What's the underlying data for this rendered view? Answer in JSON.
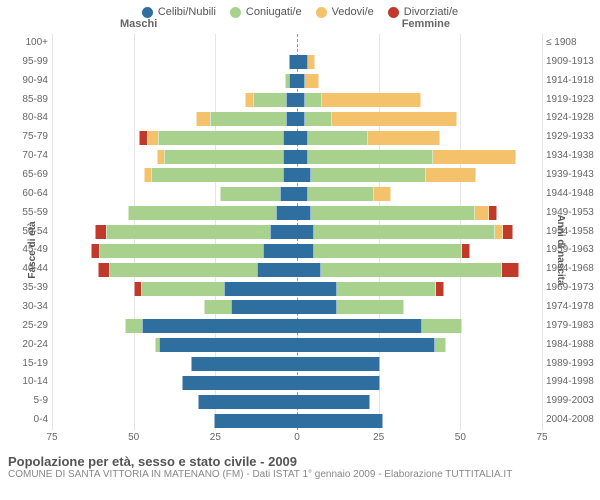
{
  "legend": [
    {
      "label": "Celibi/Nubili",
      "color": "#2f6f9f"
    },
    {
      "label": "Coniugati/e",
      "color": "#a9d18e"
    },
    {
      "label": "Vedovi/e",
      "color": "#f4c26b"
    },
    {
      "label": "Divorziati/e",
      "color": "#c0392b"
    }
  ],
  "headers": {
    "male": "Maschi",
    "female": "Femmine"
  },
  "ylabels": {
    "left": "Fasce di età",
    "right": "Anni di nascita"
  },
  "xaxis": {
    "max": 75,
    "ticks": [
      75,
      50,
      25,
      0,
      25,
      50,
      75
    ]
  },
  "title": "Popolazione per età, sesso e stato civile - 2009",
  "subtitle": "COMUNE DI SANTA VITTORIA IN MATENANO (FM) - Dati ISTAT 1° gennaio 2009 - Elaborazione TUTTITALIA.IT",
  "rows": [
    {
      "age": "100+",
      "birth": "≤ 1908",
      "m": [
        0,
        0,
        0,
        0
      ],
      "f": [
        0,
        0,
        0,
        0
      ]
    },
    {
      "age": "95-99",
      "birth": "1909-1913",
      "m": [
        2,
        0,
        0,
        0
      ],
      "f": [
        3,
        0,
        2,
        0
      ]
    },
    {
      "age": "90-94",
      "birth": "1914-1918",
      "m": [
        2,
        1,
        0,
        0
      ],
      "f": [
        2,
        0,
        4,
        0
      ]
    },
    {
      "age": "85-89",
      "birth": "1919-1923",
      "m": [
        3,
        10,
        2,
        0
      ],
      "f": [
        2,
        5,
        30,
        0
      ]
    },
    {
      "age": "80-84",
      "birth": "1924-1928",
      "m": [
        3,
        23,
        4,
        0
      ],
      "f": [
        2,
        8,
        38,
        0
      ]
    },
    {
      "age": "75-79",
      "birth": "1929-1933",
      "m": [
        4,
        38,
        3,
        2
      ],
      "f": [
        3,
        18,
        22,
        0
      ]
    },
    {
      "age": "70-74",
      "birth": "1934-1938",
      "m": [
        4,
        36,
        2,
        0
      ],
      "f": [
        3,
        38,
        25,
        0
      ]
    },
    {
      "age": "65-69",
      "birth": "1939-1943",
      "m": [
        4,
        40,
        2,
        0
      ],
      "f": [
        4,
        35,
        15,
        0
      ]
    },
    {
      "age": "60-64",
      "birth": "1944-1948",
      "m": [
        5,
        18,
        0,
        0
      ],
      "f": [
        3,
        20,
        5,
        0
      ]
    },
    {
      "age": "55-59",
      "birth": "1949-1953",
      "m": [
        6,
        45,
        0,
        0
      ],
      "f": [
        4,
        50,
        4,
        2
      ]
    },
    {
      "age": "50-54",
      "birth": "1954-1958",
      "m": [
        8,
        50,
        0,
        3
      ],
      "f": [
        5,
        55,
        2,
        3
      ]
    },
    {
      "age": "45-49",
      "birth": "1959-1963",
      "m": [
        10,
        50,
        0,
        2
      ],
      "f": [
        5,
        45,
        0,
        2
      ]
    },
    {
      "age": "40-44",
      "birth": "1964-1968",
      "m": [
        12,
        45,
        0,
        3
      ],
      "f": [
        7,
        55,
        0,
        5
      ]
    },
    {
      "age": "35-39",
      "birth": "1969-1973",
      "m": [
        22,
        25,
        0,
        2
      ],
      "f": [
        12,
        30,
        0,
        2
      ]
    },
    {
      "age": "30-34",
      "birth": "1974-1978",
      "m": [
        20,
        8,
        0,
        0
      ],
      "f": [
        12,
        20,
        0,
        0
      ]
    },
    {
      "age": "25-29",
      "birth": "1979-1983",
      "m": [
        47,
        5,
        0,
        0
      ],
      "f": [
        38,
        12,
        0,
        0
      ]
    },
    {
      "age": "20-24",
      "birth": "1984-1988",
      "m": [
        42,
        1,
        0,
        0
      ],
      "f": [
        42,
        3,
        0,
        0
      ]
    },
    {
      "age": "15-19",
      "birth": "1989-1993",
      "m": [
        32,
        0,
        0,
        0
      ],
      "f": [
        25,
        0,
        0,
        0
      ]
    },
    {
      "age": "10-14",
      "birth": "1994-1998",
      "m": [
        35,
        0,
        0,
        0
      ],
      "f": [
        25,
        0,
        0,
        0
      ]
    },
    {
      "age": "5-9",
      "birth": "1999-2003",
      "m": [
        30,
        0,
        0,
        0
      ],
      "f": [
        22,
        0,
        0,
        0
      ]
    },
    {
      "age": "0-4",
      "birth": "2004-2008",
      "m": [
        25,
        0,
        0,
        0
      ],
      "f": [
        26,
        0,
        0,
        0
      ]
    }
  ]
}
